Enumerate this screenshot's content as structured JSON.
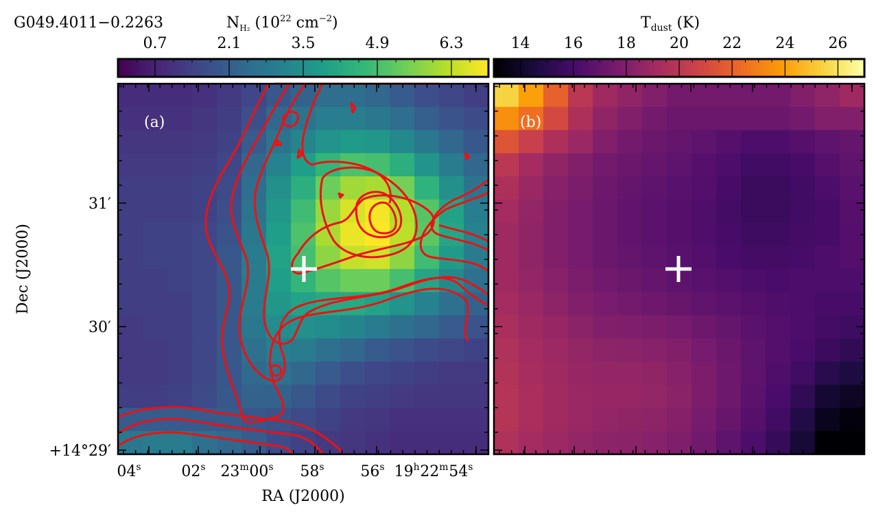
{
  "chart_data": [
    {
      "type": "heatmap",
      "panel": "(a)",
      "source_name": "G049.4011−0.2263",
      "colorbar": {
        "label_base": "N",
        "label_sub": "H₂",
        "label_rest": " (10",
        "label_sup": "22",
        "label_unit": " cm",
        "label_unit_sup": "−2",
        "label_close": ")",
        "ticks": [
          0.7,
          2.1,
          3.5,
          4.9,
          6.3
        ],
        "tick_labels": [
          "0.7",
          "2.1",
          "3.5",
          "4.9",
          "6.3"
        ],
        "range": [
          0.0,
          7.0
        ],
        "colormap": "viridis"
      },
      "contours": {
        "color": "#ee1111"
      },
      "marker": {
        "symbol": "+",
        "color": "#ffffff"
      },
      "xaxis": {
        "label": "RA (J2000)",
        "tick_labels": [
          {
            "main": "04",
            "sup": "s"
          },
          {
            "main": "02",
            "sup": "s"
          },
          {
            "main": "23",
            "sup": "m",
            "main2": "00",
            "sup2": "s"
          },
          {
            "main": "58",
            "sup": "s"
          },
          {
            "main": "56",
            "sup": "s"
          },
          {
            "main": "19",
            "sup": "h",
            "main2": "22",
            "sup2": "m",
            "main3": "54",
            "sup3": "s"
          }
        ]
      },
      "yaxis": {
        "label": "Dec (J2000)",
        "tick_labels": [
          "31′",
          "30′",
          "+14°29′"
        ]
      },
      "grid": false,
      "values": [
        [
          0.9,
          0.9,
          0.9,
          1.0,
          1.2,
          1.5,
          1.9,
          2.2,
          2.5,
          2.5,
          2.3,
          2.0,
          1.7,
          1.5,
          1.3
        ],
        [
          1.0,
          1.0,
          1.0,
          1.1,
          1.3,
          1.7,
          2.3,
          2.7,
          3.0,
          3.0,
          2.8,
          2.5,
          2.1,
          1.8,
          1.6
        ],
        [
          1.1,
          1.1,
          1.1,
          1.2,
          1.4,
          2.0,
          2.7,
          3.2,
          3.6,
          3.8,
          3.7,
          3.3,
          2.8,
          2.3,
          1.9
        ],
        [
          1.2,
          1.2,
          1.2,
          1.3,
          1.5,
          2.3,
          3.1,
          3.9,
          4.6,
          5.0,
          4.9,
          4.4,
          3.6,
          2.9,
          2.3
        ],
        [
          1.3,
          1.3,
          1.3,
          1.4,
          1.6,
          2.5,
          3.5,
          4.4,
          5.4,
          6.0,
          6.1,
          5.5,
          4.5,
          3.5,
          2.7
        ],
        [
          1.3,
          1.3,
          1.3,
          1.4,
          1.7,
          2.7,
          3.7,
          4.8,
          5.9,
          6.6,
          6.9,
          6.2,
          5.1,
          4.0,
          3.0
        ],
        [
          1.3,
          1.4,
          1.4,
          1.5,
          1.8,
          2.8,
          3.9,
          5.0,
          6.1,
          6.8,
          7.0,
          6.3,
          5.2,
          4.1,
          3.1
        ],
        [
          1.3,
          1.4,
          1.4,
          1.5,
          1.9,
          2.9,
          4.0,
          4.9,
          5.8,
          6.4,
          6.5,
          5.8,
          4.8,
          3.8,
          2.9
        ],
        [
          1.3,
          1.3,
          1.4,
          1.5,
          1.9,
          2.9,
          3.9,
          4.6,
          5.1,
          5.4,
          5.4,
          4.9,
          4.1,
          3.3,
          2.6
        ],
        [
          1.3,
          1.3,
          1.3,
          1.5,
          1.9,
          2.9,
          3.7,
          4.0,
          4.2,
          4.2,
          4.0,
          3.6,
          3.1,
          2.6,
          2.2
        ],
        [
          1.2,
          1.3,
          1.3,
          1.5,
          1.9,
          2.8,
          3.4,
          3.5,
          3.4,
          3.2,
          2.9,
          2.6,
          2.3,
          2.0,
          1.8
        ],
        [
          1.2,
          1.2,
          1.3,
          1.5,
          1.9,
          2.6,
          3.0,
          2.9,
          2.6,
          2.3,
          2.0,
          1.8,
          1.6,
          1.5,
          1.4
        ],
        [
          1.2,
          1.2,
          1.3,
          1.5,
          1.9,
          2.4,
          2.6,
          2.3,
          2.0,
          1.7,
          1.5,
          1.4,
          1.3,
          1.2,
          1.2
        ],
        [
          1.3,
          1.3,
          1.4,
          1.6,
          1.9,
          2.2,
          2.2,
          1.9,
          1.6,
          1.4,
          1.3,
          1.2,
          1.1,
          1.1,
          1.1
        ],
        [
          2.0,
          2.0,
          2.0,
          2.0,
          2.0,
          1.9,
          1.8,
          1.6,
          1.4,
          1.2,
          1.1,
          1.0,
          1.0,
          1.0,
          1.0
        ],
        [
          2.8,
          2.9,
          2.9,
          2.6,
          2.3,
          2.0,
          1.6,
          1.4,
          1.2,
          1.1,
          1.0,
          0.9,
          0.9,
          0.9,
          0.9
        ]
      ]
    },
    {
      "type": "heatmap",
      "panel": "(b)",
      "colorbar": {
        "label_base": "T",
        "label_sub": "dust",
        "label_rest": " (K)",
        "ticks": [
          14,
          16,
          18,
          20,
          22,
          24,
          26
        ],
        "tick_labels": [
          "14",
          "16",
          "18",
          "20",
          "22",
          "24",
          "26"
        ],
        "range": [
          13.0,
          27.0
        ],
        "colormap": "inferno"
      },
      "marker": {
        "symbol": "+",
        "color": "#ffffff"
      },
      "grid": false,
      "values": [
        [
          25.5,
          24.0,
          22.0,
          20.0,
          19.0,
          18.5,
          18.0,
          17.5,
          17.5,
          17.5,
          17.5,
          17.5,
          18.0,
          18.5,
          19.0
        ],
        [
          23.5,
          22.5,
          21.0,
          19.5,
          18.5,
          18.0,
          17.5,
          17.2,
          17.2,
          17.2,
          17.2,
          17.2,
          17.5,
          18.0,
          18.0
        ],
        [
          21.5,
          20.5,
          19.5,
          18.8,
          18.0,
          17.5,
          17.2,
          17.0,
          16.8,
          16.5,
          16.2,
          16.2,
          16.5,
          16.8,
          17.0
        ],
        [
          20.0,
          19.2,
          18.5,
          18.0,
          17.5,
          17.2,
          17.0,
          16.8,
          16.5,
          16.2,
          15.8,
          15.8,
          16.0,
          16.5,
          16.8
        ],
        [
          19.5,
          18.8,
          18.2,
          17.8,
          17.3,
          17.0,
          16.8,
          16.6,
          16.4,
          16.0,
          15.6,
          15.6,
          15.8,
          16.2,
          16.6
        ],
        [
          19.2,
          18.6,
          18.0,
          17.6,
          17.2,
          16.9,
          16.7,
          16.5,
          16.3,
          15.9,
          15.6,
          15.6,
          15.8,
          16.0,
          16.5
        ],
        [
          19.0,
          18.5,
          18.0,
          17.6,
          17.2,
          16.9,
          16.7,
          16.5,
          16.3,
          16.0,
          15.7,
          15.7,
          15.9,
          16.0,
          16.4
        ],
        [
          19.0,
          18.5,
          18.0,
          17.6,
          17.2,
          17.0,
          16.8,
          16.6,
          16.4,
          16.1,
          15.9,
          15.9,
          16.0,
          16.2,
          16.4
        ],
        [
          19.0,
          18.6,
          18.2,
          17.8,
          17.4,
          17.2,
          17.0,
          16.8,
          16.6,
          16.4,
          16.2,
          16.1,
          16.2,
          16.2,
          16.2
        ],
        [
          19.2,
          18.8,
          18.4,
          18.0,
          17.7,
          17.5,
          17.3,
          17.1,
          16.9,
          16.7,
          16.5,
          16.3,
          16.2,
          16.0,
          16.0
        ],
        [
          19.4,
          19.0,
          18.7,
          18.3,
          18.0,
          17.9,
          17.8,
          17.6,
          17.3,
          17.0,
          16.7,
          16.4,
          16.2,
          15.9,
          15.7
        ],
        [
          19.6,
          19.2,
          18.9,
          18.6,
          18.4,
          18.3,
          18.2,
          18.0,
          17.6,
          17.2,
          16.8,
          16.4,
          16.1,
          15.6,
          15.3
        ],
        [
          19.7,
          19.3,
          19.0,
          18.7,
          18.6,
          18.6,
          18.5,
          18.2,
          17.8,
          17.3,
          16.8,
          16.3,
          15.8,
          15.0,
          14.6
        ],
        [
          19.8,
          19.4,
          19.1,
          18.8,
          18.7,
          18.7,
          18.6,
          18.3,
          17.8,
          17.3,
          16.7,
          16.1,
          15.3,
          14.2,
          13.8
        ],
        [
          19.8,
          19.4,
          19.1,
          18.8,
          18.6,
          18.5,
          18.4,
          18.1,
          17.6,
          17.1,
          16.5,
          15.8,
          14.8,
          13.6,
          13.2
        ],
        [
          19.6,
          19.2,
          18.9,
          18.6,
          18.4,
          18.3,
          18.2,
          17.9,
          17.4,
          16.8,
          16.2,
          15.4,
          14.3,
          13.0,
          13.0
        ]
      ]
    }
  ]
}
